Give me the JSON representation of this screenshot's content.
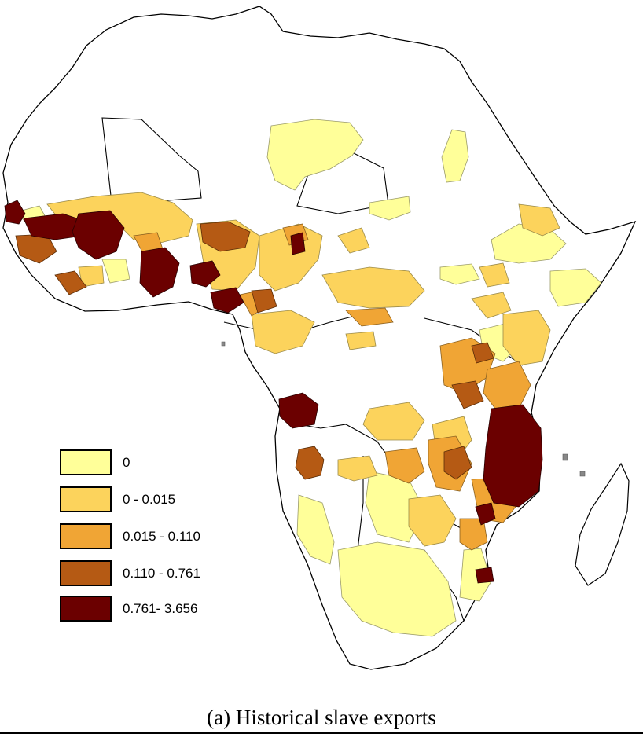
{
  "map": {
    "colors": {
      "background": "#ffffff",
      "outline": "#000000",
      "class_0": "#ffff99",
      "class_1": "#fcd35c",
      "class_2": "#f0a535",
      "class_3": "#b55a14",
      "class_4": "#6b0000"
    }
  },
  "legend": {
    "items": [
      {
        "label": "0",
        "color": "#ffff99"
      },
      {
        "label": "0 - 0.015",
        "color": "#fcd35c"
      },
      {
        "label": "0.015 - 0.110",
        "color": "#f0a535"
      },
      {
        "label": "0.110 - 0.761",
        "color": "#b55a14"
      },
      {
        "label": "0.761- 3.656",
        "color": "#6b0000"
      }
    ]
  },
  "caption": "(a) Historical slave exports"
}
